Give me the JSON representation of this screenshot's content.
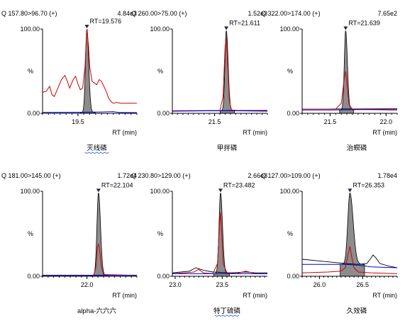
{
  "chart_data": [
    {
      "type": "line",
      "header_left": "Q 157.80>96.70 (+)",
      "header_right": "4.84e3",
      "peak_label": "RT=19.576",
      "ylabel": "%",
      "y_ticks": [
        "100.00",
        "0.00"
      ],
      "xlabel": "RT (min)",
      "caption": "灭线磷",
      "caption_squiggle": true,
      "xlim": [
        19.2,
        20.0
      ],
      "x_ticks": [
        {
          "v": 19.5,
          "t": "19.5"
        }
      ],
      "ylim": [
        0,
        100
      ],
      "rt": 19.576,
      "peak_height": 100,
      "peak_sigma": 0.012,
      "peak_tail": 1.3,
      "baseline": 1,
      "red_series": [
        [
          19.2,
          25
        ],
        [
          19.23,
          26
        ],
        [
          19.26,
          32
        ],
        [
          19.28,
          22
        ],
        [
          19.3,
          20
        ],
        [
          19.33,
          30
        ],
        [
          19.36,
          40
        ],
        [
          19.39,
          45
        ],
        [
          19.41,
          38
        ],
        [
          19.43,
          30
        ],
        [
          19.46,
          40
        ],
        [
          19.48,
          44
        ],
        [
          19.5,
          35
        ],
        [
          19.52,
          28
        ],
        [
          19.54,
          30
        ],
        [
          19.56,
          55
        ],
        [
          19.57,
          85
        ],
        [
          19.576,
          100
        ],
        [
          19.59,
          80
        ],
        [
          19.6,
          55
        ],
        [
          19.62,
          38
        ],
        [
          19.64,
          36
        ],
        [
          19.66,
          34
        ],
        [
          19.68,
          40
        ],
        [
          19.7,
          38
        ],
        [
          19.72,
          32
        ],
        [
          19.74,
          26
        ],
        [
          19.76,
          18
        ],
        [
          19.78,
          14
        ],
        [
          19.8,
          12
        ],
        [
          19.83,
          13
        ],
        [
          19.86,
          12
        ],
        [
          19.9,
          12
        ],
        [
          20.0,
          12
        ]
      ],
      "blue_series": [
        [
          19.2,
          1.2
        ],
        [
          19.5,
          1.3
        ],
        [
          19.7,
          1.6
        ],
        [
          19.8,
          2
        ],
        [
          19.85,
          1
        ],
        [
          20.0,
          0.8
        ]
      ],
      "black_series": []
    },
    {
      "type": "line",
      "header_left": "Q 260.00>75.00 (+)",
      "header_right": "1.52e3",
      "peak_label": "RT=21.611",
      "ylabel": "%",
      "y_ticks": [
        "100.00",
        "0.00"
      ],
      "xlabel": "RT (min)",
      "caption": "甲拌磷",
      "caption_squiggle": false,
      "xlim": [
        21.1,
        22.0
      ],
      "x_ticks": [
        {
          "v": 21.5,
          "t": "21.5"
        }
      ],
      "ylim": [
        0,
        100
      ],
      "rt": 21.611,
      "peak_height": 98,
      "peak_sigma": 0.013,
      "peak_tail": 1.3,
      "baseline": 3,
      "red_series": [
        [
          21.1,
          3
        ],
        [
          21.4,
          3
        ],
        [
          21.55,
          3
        ],
        [
          21.58,
          20
        ],
        [
          21.6,
          80
        ],
        [
          21.611,
          90
        ],
        [
          21.625,
          55
        ],
        [
          21.64,
          15
        ],
        [
          21.66,
          4
        ],
        [
          21.75,
          3
        ],
        [
          22.0,
          3
        ]
      ],
      "blue_series": [
        [
          21.1,
          2.5
        ],
        [
          21.5,
          3
        ],
        [
          21.7,
          3
        ],
        [
          22.0,
          2.5
        ]
      ],
      "black_series": [
        [
          21.1,
          3
        ],
        [
          22.0,
          3.5
        ]
      ]
    },
    {
      "type": "line",
      "header_left": "Q 322.00>174.00 (+)",
      "header_right": "7.65e2",
      "peak_label": "RT=21.639",
      "ylabel": "%",
      "y_ticks": [
        "100.00",
        "0.00"
      ],
      "xlabel": "RT (min)",
      "caption": "治螟磷",
      "caption_squiggle": false,
      "xlim": [
        21.25,
        22.1
      ],
      "x_ticks": [
        {
          "v": 21.5,
          "t": "21.5"
        },
        {
          "v": 22.0,
          "t": "22.0"
        }
      ],
      "ylim": [
        0,
        100
      ],
      "rt": 21.639,
      "peak_height": 98,
      "peak_sigma": 0.012,
      "peak_tail": 1.3,
      "baseline": 4,
      "red_series": [
        [
          21.25,
          5
        ],
        [
          21.55,
          5
        ],
        [
          21.6,
          12
        ],
        [
          21.625,
          40
        ],
        [
          21.639,
          50
        ],
        [
          21.655,
          30
        ],
        [
          21.67,
          10
        ],
        [
          21.7,
          5
        ],
        [
          22.1,
          5
        ]
      ],
      "blue_series": [
        [
          21.25,
          4
        ],
        [
          21.5,
          4
        ],
        [
          21.8,
          4.5
        ],
        [
          22.1,
          4
        ]
      ],
      "black_series": [
        [
          21.25,
          5
        ],
        [
          22.1,
          5.5
        ]
      ]
    },
    {
      "type": "line",
      "header_left": "Q 181.00>145.00 (+)",
      "header_right": "1.72e4",
      "peak_label": "RT=22.104",
      "ylabel": "%",
      "y_ticks": [
        "100.00",
        "0.00"
      ],
      "xlabel": "RT (min)",
      "caption": "alpha-六六六",
      "caption_squiggle": false,
      "xlim": [
        21.6,
        22.45
      ],
      "x_ticks": [
        {
          "v": 22.0,
          "t": "22.0"
        }
      ],
      "ylim": [
        0,
        100
      ],
      "rt": 22.104,
      "peak_height": 98,
      "peak_sigma": 0.014,
      "peak_tail": 1.3,
      "baseline": 1,
      "red_series": [
        [
          21.6,
          1
        ],
        [
          22.06,
          1
        ],
        [
          22.08,
          10
        ],
        [
          22.095,
          35
        ],
        [
          22.104,
          38
        ],
        [
          22.115,
          30
        ],
        [
          22.13,
          12
        ],
        [
          22.15,
          2
        ],
        [
          22.45,
          1
        ]
      ],
      "blue_series": [
        [
          21.6,
          1
        ],
        [
          22.45,
          1
        ]
      ],
      "black_series": [
        [
          21.6,
          1.2
        ],
        [
          22.45,
          1.2
        ]
      ]
    },
    {
      "type": "line",
      "header_left": "Q 230.80>129.00 (+)",
      "header_right": "2.66e3",
      "peak_label": "RT=23.482",
      "ylabel": "%",
      "y_ticks": [
        "100.00",
        "0.00"
      ],
      "xlabel": "RT (min)",
      "caption": "特丁硫磷",
      "caption_squiggle": true,
      "xlim": [
        22.97,
        23.98
      ],
      "x_ticks": [
        {
          "v": 23.0,
          "t": "23.0"
        },
        {
          "v": 23.5,
          "t": "23.5"
        }
      ],
      "ylim": [
        0,
        100
      ],
      "rt": 23.482,
      "peak_height": 98,
      "peak_sigma": 0.016,
      "peak_tail": 1.3,
      "baseline": 3,
      "red_series": [
        [
          22.97,
          3
        ],
        [
          23.2,
          5
        ],
        [
          23.25,
          8
        ],
        [
          23.3,
          4
        ],
        [
          23.4,
          3
        ],
        [
          23.45,
          15
        ],
        [
          23.47,
          60
        ],
        [
          23.482,
          75
        ],
        [
          23.495,
          50
        ],
        [
          23.51,
          15
        ],
        [
          23.55,
          4
        ],
        [
          23.65,
          3
        ],
        [
          23.75,
          6
        ],
        [
          23.85,
          3
        ],
        [
          23.98,
          3
        ]
      ],
      "blue_series": [
        [
          22.97,
          3
        ],
        [
          23.98,
          3
        ]
      ],
      "black_series": [
        [
          22.97,
          4
        ],
        [
          23.15,
          6
        ],
        [
          23.22,
          10
        ],
        [
          23.3,
          7
        ],
        [
          23.4,
          5
        ],
        [
          23.6,
          4
        ],
        [
          23.75,
          5
        ],
        [
          23.85,
          4
        ],
        [
          23.98,
          4
        ]
      ]
    },
    {
      "type": "line",
      "header_left": "Q 127.00>109.00 (+)",
      "header_right": "1.78e4",
      "peak_label": "RT=26.353",
      "ylabel": "%",
      "y_ticks": [
        "100.00",
        "0.00"
      ],
      "xlabel": "RT (min)",
      "caption": "久效磷",
      "caption_squiggle": false,
      "xlim": [
        25.8,
        26.9
      ],
      "x_ticks": [
        {
          "v": 26.0,
          "t": "26.0"
        },
        {
          "v": 26.5,
          "t": "26.5"
        }
      ],
      "ylim": [
        0,
        100
      ],
      "rt": 26.353,
      "peak_height": 98,
      "peak_sigma": 0.025,
      "peak_tail": 1.5,
      "baseline": 14,
      "red_series": [
        [
          25.8,
          4
        ],
        [
          26.1,
          5
        ],
        [
          26.25,
          6
        ],
        [
          26.3,
          10
        ],
        [
          26.33,
          25
        ],
        [
          26.353,
          35
        ],
        [
          26.375,
          22
        ],
        [
          26.4,
          10
        ],
        [
          26.45,
          5
        ],
        [
          26.6,
          4
        ],
        [
          26.9,
          3
        ]
      ],
      "blue_series": [
        [
          25.8,
          14
        ],
        [
          26.3,
          14
        ],
        [
          26.45,
          13
        ],
        [
          26.6,
          11
        ],
        [
          26.9,
          10
        ]
      ],
      "black_series": [
        [
          25.8,
          20
        ],
        [
          26.0,
          18
        ],
        [
          26.2,
          16
        ],
        [
          26.3,
          15
        ],
        [
          26.45,
          14
        ],
        [
          26.55,
          15
        ],
        [
          26.6,
          22
        ],
        [
          26.62,
          25
        ],
        [
          26.65,
          22
        ],
        [
          26.7,
          15
        ],
        [
          26.8,
          12
        ],
        [
          26.9,
          10
        ]
      ]
    }
  ]
}
